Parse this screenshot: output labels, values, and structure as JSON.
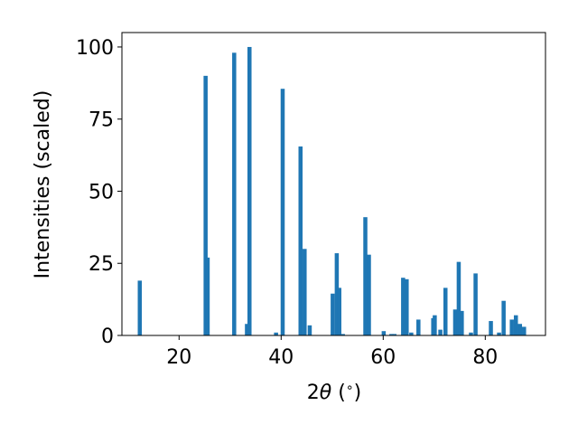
{
  "chart_data": {
    "type": "bar",
    "title": "",
    "xlabel_prefix": "2",
    "xlabel_symbol": "θ",
    "xlabel_suffix": " (",
    "xlabel_degree": "∘",
    "xlabel_close": ")",
    "ylabel": "Intensities (scaled)",
    "xlim": [
      8.8,
      91.8
    ],
    "ylim": [
      0,
      105
    ],
    "xticks": [
      20,
      40,
      60,
      80
    ],
    "yticks": [
      0,
      25,
      50,
      75,
      100
    ],
    "grid": false,
    "legend": "none",
    "bar_width_data": 0.8,
    "color": "#1f77b4",
    "x": [
      12.3,
      25.2,
      25.6,
      30.8,
      33.3,
      33.8,
      39.0,
      40.3,
      43.8,
      44.6,
      45.6,
      50.1,
      50.9,
      51.4,
      52.1,
      56.5,
      57.2,
      60.1,
      61.6,
      62.2,
      63.9,
      64.6,
      65.5,
      66.9,
      69.8,
      70.1,
      71.2,
      72.2,
      74.1,
      74.8,
      75.4,
      77.2,
      78.1,
      81.1,
      82.7,
      83.6,
      85.2,
      86.0,
      86.8,
      87.6
    ],
    "values": [
      19,
      90,
      27,
      98,
      4,
      100,
      1,
      85.5,
      65.5,
      30,
      3.5,
      14.5,
      28.5,
      16.5,
      0.5,
      41,
      28,
      1.5,
      0.5,
      0.5,
      20,
      19.5,
      1,
      5.5,
      6,
      7,
      2,
      16.5,
      9,
      25.5,
      8.5,
      1,
      21.5,
      5,
      1,
      12,
      5.5,
      7,
      4,
      3
    ]
  }
}
